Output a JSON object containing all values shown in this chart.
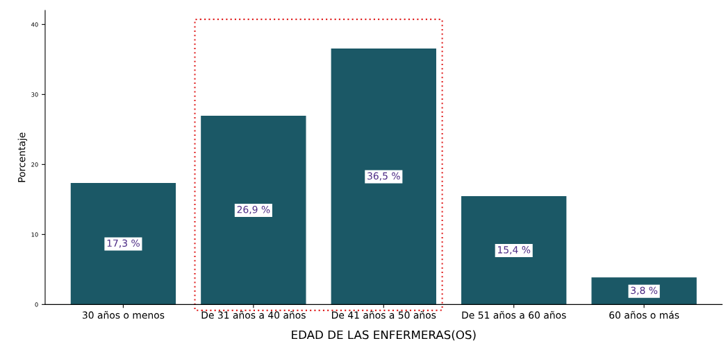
{
  "chart_data": {
    "type": "bar",
    "xlabel": "EDAD DE LAS ENFERMERAS(OS)",
    "ylabel": "Porcentaje",
    "categories": [
      "30 años o menos",
      "De 31 años a 40 años",
      "De 41 años a 50 años",
      "De 51 años a 60 años",
      "60 años o más"
    ],
    "values": [
      17.3,
      26.9,
      36.5,
      15.4,
      3.8
    ],
    "value_labels": [
      "17,3 %",
      "26,9 %",
      "36,5 %",
      "15,4 %",
      "3,8 %"
    ],
    "color": "#1b5866",
    "ylim": [
      0,
      42
    ],
    "yticks": [
      0,
      10,
      20,
      30,
      40
    ],
    "grid": false
  }
}
